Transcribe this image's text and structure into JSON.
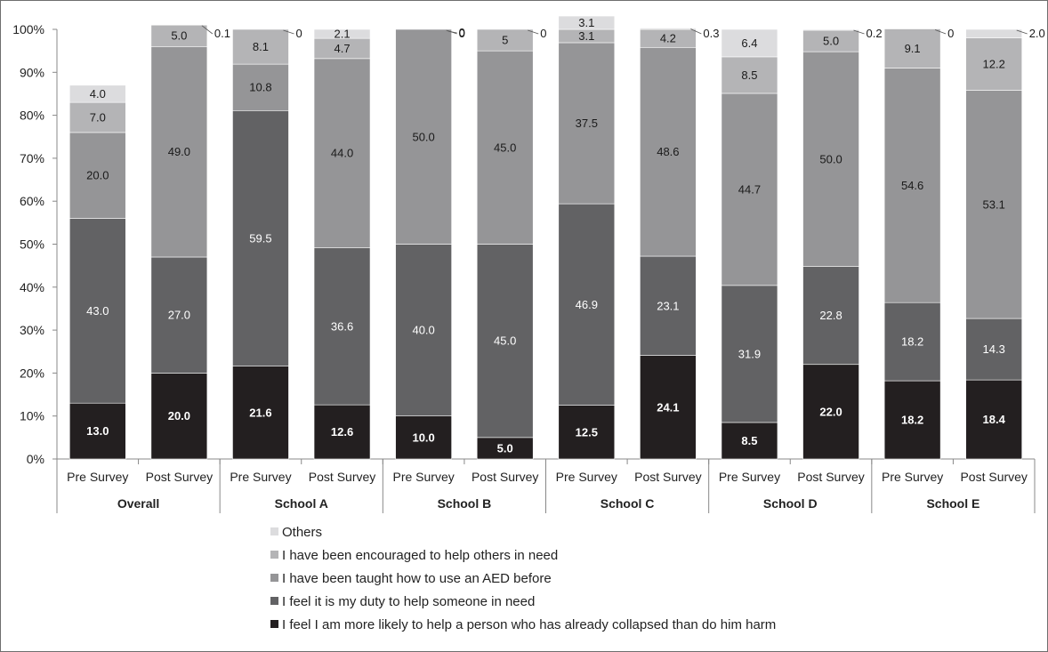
{
  "chart_data": {
    "type": "bar",
    "stacked": true,
    "ylim": [
      0,
      100
    ],
    "y_ticks": [
      "0%",
      "10%",
      "20%",
      "30%",
      "40%",
      "50%",
      "60%",
      "70%",
      "80%",
      "90%",
      "100%"
    ],
    "grid": false,
    "legend_position": "bottom",
    "categories": [
      "Pre Survey",
      "Post Survey",
      "Pre Survey",
      "Post Survey",
      "Pre Survey",
      "Post Survey",
      "Pre Survey",
      "Post Survey",
      "Pre Survey",
      "Post Survey",
      "Pre Survey",
      "Post Survey"
    ],
    "groups": [
      "Overall",
      "School A",
      "School B",
      "School C",
      "School D",
      "School E"
    ],
    "series": [
      {
        "name": "I feel I am more likely to help a person who has already collapsed than do him harm",
        "color": "#231f20",
        "values": [
          13.0,
          20.0,
          21.6,
          12.6,
          10.0,
          5.0,
          12.5,
          24.1,
          8.5,
          22.0,
          18.2,
          18.4
        ],
        "labels": [
          "13.0",
          "20.0",
          "21.6",
          "12.6",
          "10.0",
          "5.0",
          "12.5",
          "24.1",
          "8.5",
          "22.0",
          "18.2",
          "18.4"
        ]
      },
      {
        "name": "I feel it is my duty to help someone in need",
        "color": "#626264",
        "values": [
          43.0,
          27.0,
          59.5,
          36.6,
          40.0,
          45.0,
          46.9,
          23.1,
          31.9,
          22.8,
          18.2,
          14.3
        ],
        "labels": [
          "43.0",
          "27.0",
          "59.5",
          "36.6",
          "40.0",
          "45.0",
          "46.9",
          "23.1",
          "31.9",
          "22.8",
          "18.2",
          "14.3"
        ]
      },
      {
        "name": "I have been taught how to use an AED before",
        "color": "#959597",
        "values": [
          20.0,
          49.0,
          10.8,
          44.0,
          50.0,
          45.0,
          37.5,
          48.6,
          44.7,
          50.0,
          54.6,
          53.1
        ],
        "labels": [
          "20.0",
          "49.0",
          "10.8",
          "44.0",
          "50.0",
          "45.0",
          "37.5",
          "48.6",
          "44.7",
          "50.0",
          "54.6",
          "53.1"
        ]
      },
      {
        "name": "I have been encouraged to help others in need",
        "color": "#b4b4b6",
        "values": [
          7.0,
          5.0,
          8.1,
          4.7,
          0,
          5,
          3.1,
          4.2,
          8.5,
          5.0,
          9.1,
          12.2
        ],
        "labels": [
          "7.0",
          "5.0",
          "8.1",
          "4.7",
          "0",
          "5",
          "3.1",
          "4.2",
          "8.5",
          "5.0",
          "9.1",
          "12.2"
        ]
      },
      {
        "name": "Others",
        "color": "#dcdcde",
        "values": [
          4.0,
          0.1,
          0,
          2.1,
          0,
          0,
          3.1,
          0.3,
          6.4,
          0.2,
          0,
          2.0
        ],
        "labels": [
          "4.0",
          "0.1",
          "0",
          "2.1",
          "0",
          "0",
          "3.1",
          "0.3",
          "6.4",
          "0.2",
          "0",
          "2.0"
        ]
      }
    ]
  }
}
